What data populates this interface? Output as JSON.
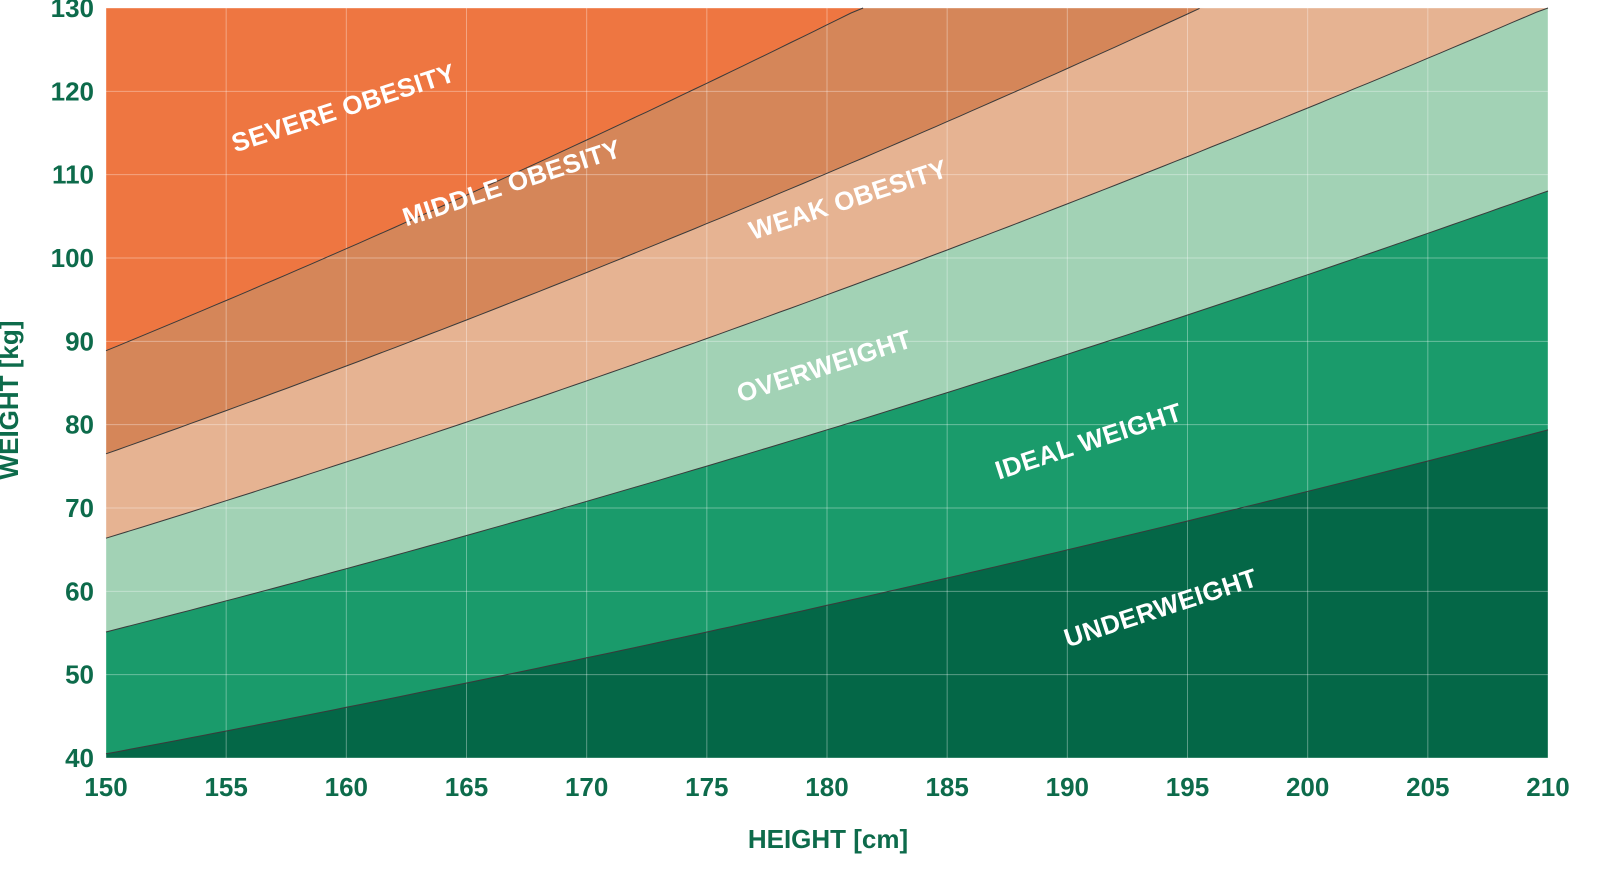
{
  "chart_data": {
    "type": "area",
    "xlabel": "HEIGHT [cm]",
    "ylabel": "WEIGHT [kg]",
    "xlim": [
      150,
      210
    ],
    "ylim": [
      40,
      130
    ],
    "x_ticks": [
      "150",
      "155",
      "160",
      "165",
      "170",
      "175",
      "180",
      "185",
      "190",
      "195",
      "200",
      "205",
      "210"
    ],
    "y_ticks": [
      "40",
      "50",
      "60",
      "70",
      "80",
      "90",
      "100",
      "110",
      "120",
      "130"
    ],
    "grid": true,
    "bmi_boundaries": [
      18,
      24.5,
      29.5,
      34,
      39.5
    ],
    "zones": [
      {
        "name": "UNDERWEIGHT",
        "color": "#046747",
        "bmi_range": [
          null,
          18
        ],
        "label_at": [
          194,
          57
        ]
      },
      {
        "name": "IDEAL WEIGHT",
        "color": "#1a9b6b",
        "bmi_range": [
          18,
          24.5
        ],
        "label_at": [
          191,
          77
        ]
      },
      {
        "name": "OVERWEIGHT",
        "color": "#a2d2b5",
        "bmi_range": [
          24.5,
          29.5
        ],
        "label_at": [
          180,
          86
        ]
      },
      {
        "name": "WEAK OBESITY",
        "color": "#e6b392",
        "bmi_range": [
          29.5,
          34
        ],
        "label_at": [
          181,
          106
        ]
      },
      {
        "name": "MIDDLE OBESITY",
        "color": "#d58659",
        "bmi_range": [
          34,
          39.5
        ],
        "label_at": [
          167,
          108
        ]
      },
      {
        "name": "SEVERE OBESITY",
        "color": "#ee7641",
        "bmi_range": [
          39.5,
          null
        ],
        "label_at": [
          160,
          117
        ]
      }
    ]
  }
}
